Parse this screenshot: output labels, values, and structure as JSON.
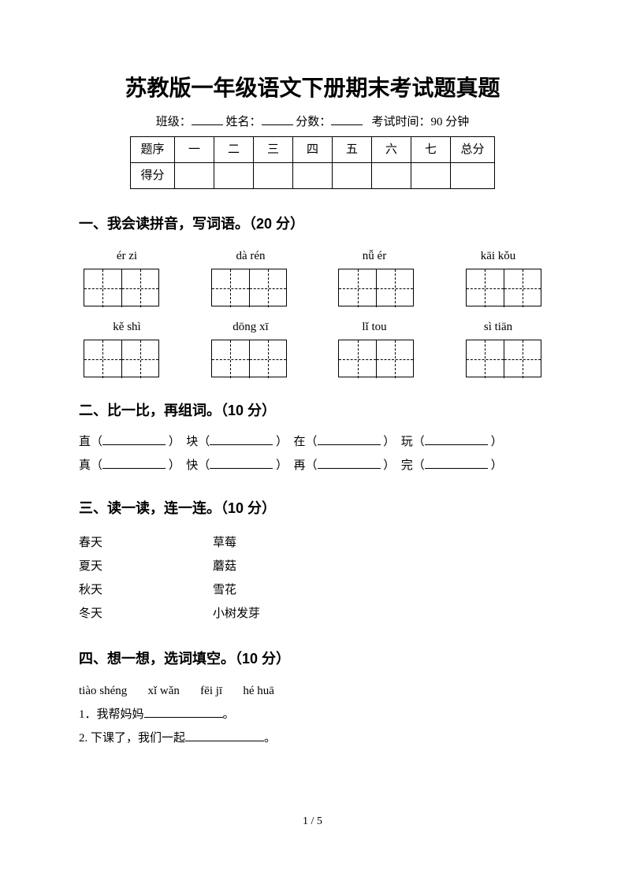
{
  "title": "苏教版一年级语文下册期末考试题真题",
  "meta": {
    "class_label": "班级：",
    "name_label": "姓名：",
    "score_label": "分数：",
    "time_label": "考试时间：90 分钟"
  },
  "score_table": {
    "row1": [
      "题序",
      "一",
      "二",
      "三",
      "四",
      "五",
      "六",
      "七",
      "总分"
    ],
    "row2_label": "得分"
  },
  "s1": {
    "title": "一、我会读拼音，写词语。（20 分）",
    "pinyin_row1": [
      "ér zi",
      "dà rén",
      "nǚ ér",
      "kāi kǒu"
    ],
    "pinyin_row2": [
      "kě shì",
      "dōng xī",
      "lǐ tou",
      "sì tiān"
    ]
  },
  "s2": {
    "title": "二、比一比，再组词。（10 分）",
    "line1": [
      "直（",
      "）　块（",
      "）　在（",
      "）　玩（",
      "）"
    ],
    "line2": [
      "真（",
      "）　快（",
      "）　再（",
      "）　完（",
      "）"
    ]
  },
  "s3": {
    "title": "三、读一读，连一连。（10 分）",
    "left": [
      "春天",
      "夏天",
      "秋天",
      "冬天"
    ],
    "right": [
      "草莓",
      "蘑菇",
      "雪花",
      "小树发芽"
    ]
  },
  "s4": {
    "title": "四、想一想，选词填空。（10 分）",
    "options": [
      "tiào shéng",
      "xǐ wǎn",
      "fēi jī",
      "hé huā"
    ],
    "q1_pre": "1．我帮妈妈",
    "q1_post": "。",
    "q2_pre": "2. 下课了，我们一起",
    "q2_post": "。"
  },
  "page_num": "1 / 5",
  "colors": {
    "text": "#000000",
    "bg": "#ffffff"
  }
}
